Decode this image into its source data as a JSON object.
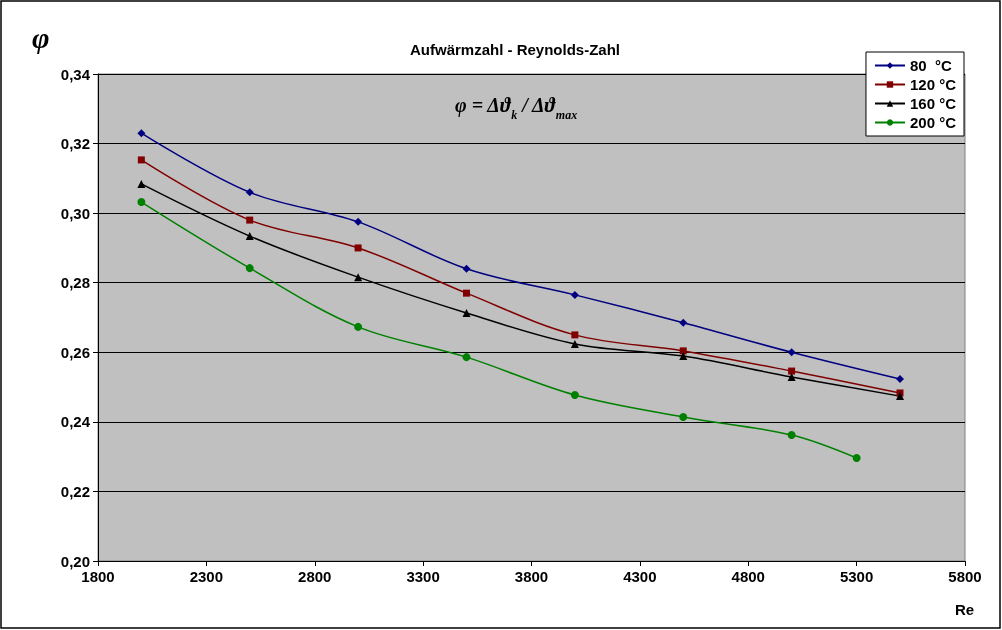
{
  "chart_data": {
    "type": "line",
    "title": "Aufwärmzahl - Reynolds-Zahl",
    "xlabel": "Re",
    "ylabel": "φ",
    "annotations": [
      "φ = Δϑ$_{k}$ / Δϑ$_{max}$"
    ],
    "xlim": [
      1800,
      5800
    ],
    "xticks": [
      1800,
      2300,
      2800,
      3300,
      3800,
      4300,
      4800,
      5300,
      5800
    ],
    "ylim": [
      0.2,
      0.34
    ],
    "yticks": [
      {
        "value": 0.2,
        "label": "0,20"
      },
      {
        "value": 0.22,
        "label": "0,22"
      },
      {
        "value": 0.24,
        "label": "0,24"
      },
      {
        "value": 0.26,
        "label": "0,26"
      },
      {
        "value": 0.28,
        "label": "0,28"
      },
      {
        "value": 0.3,
        "label": "0,30"
      },
      {
        "value": 0.32,
        "label": "0,32"
      },
      {
        "value": 0.34,
        "label": "0,34"
      }
    ],
    "grid": "y",
    "legend": "top right",
    "line_style": "solid",
    "series": [
      {
        "name": "80  °C",
        "color": "#000080",
        "marker": "diamond",
        "x": [
          2000,
          2500,
          3000,
          3500,
          4000,
          4500,
          5000,
          5500
        ],
        "values": [
          0.323,
          0.306,
          0.2975,
          0.284,
          0.2765,
          0.2685,
          0.26,
          0.2523
        ]
      },
      {
        "name": "120 °C",
        "color": "#800000",
        "marker": "square",
        "x": [
          2000,
          2500,
          3000,
          3500,
          4000,
          4500,
          5000,
          5500
        ],
        "values": [
          0.3153,
          0.298,
          0.29,
          0.277,
          0.265,
          0.2604,
          0.2546,
          0.2483
        ]
      },
      {
        "name": "160 °C",
        "color": "#000000",
        "marker": "triangle",
        "x": [
          2000,
          2500,
          3000,
          3500,
          4000,
          4500,
          5000,
          5500
        ],
        "values": [
          0.3084,
          0.2934,
          0.2816,
          0.2713,
          0.2624,
          0.2589,
          0.2529,
          0.2474
        ]
      },
      {
        "name": "200 °C",
        "color": "#008000",
        "marker": "circle",
        "x": [
          2000,
          2500,
          3000,
          3500,
          4000,
          4500,
          5000,
          5300
        ],
        "values": [
          0.3032,
          0.2842,
          0.2673,
          0.2586,
          0.2477,
          0.2414,
          0.2362,
          0.2296
        ]
      }
    ]
  }
}
